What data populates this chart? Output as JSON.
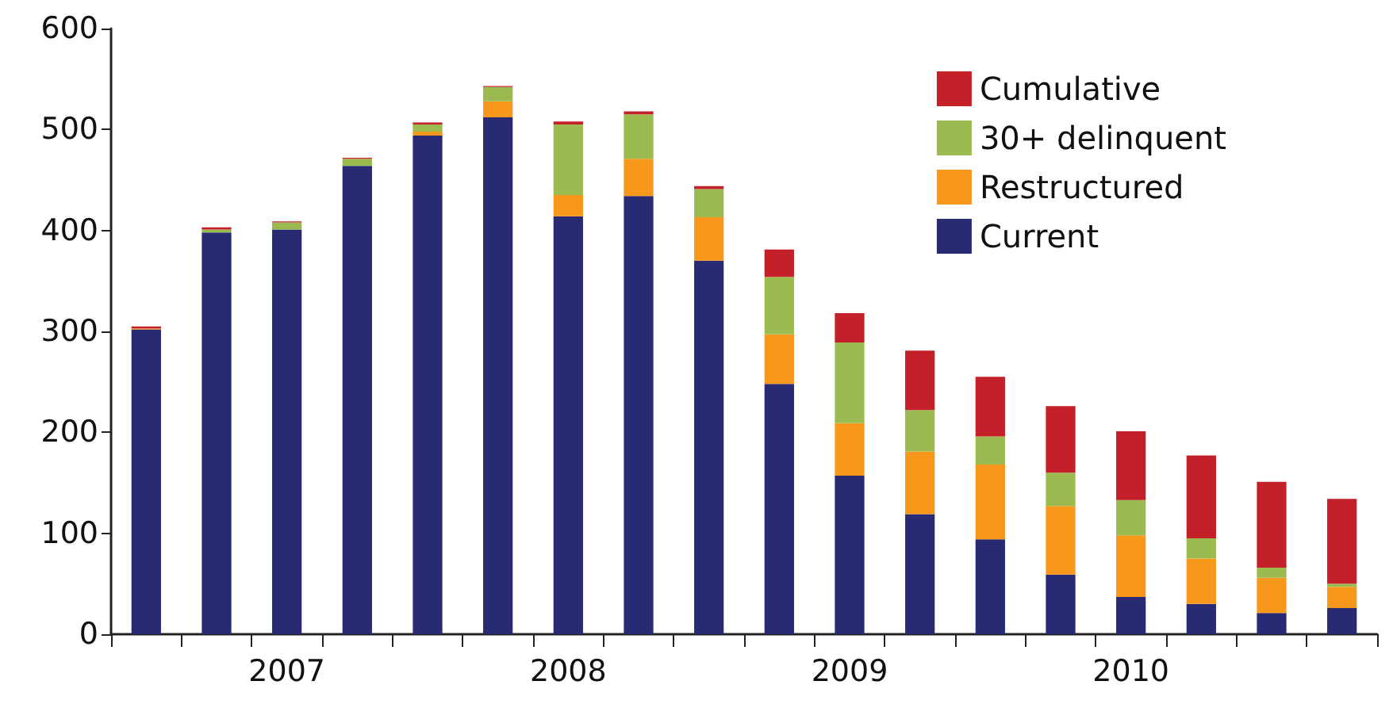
{
  "chart_data": {
    "type": "bar",
    "stacked": true,
    "categories": [
      null,
      null,
      "2007",
      null,
      null,
      null,
      "2008",
      null,
      null,
      null,
      "2009",
      null,
      null,
      null,
      "2010",
      null,
      null,
      null
    ],
    "series": [
      {
        "name": "Current",
        "color": "#282a73",
        "values": [
          302,
          398,
          401,
          464,
          494,
          512,
          414,
          434,
          370,
          248,
          157,
          119,
          94,
          59,
          37,
          30,
          21,
          26
        ]
      },
      {
        "name": "Restructured",
        "color": "#f7981d",
        "values": [
          1,
          0,
          0,
          0,
          4,
          16,
          21,
          37,
          43,
          49,
          52,
          62,
          74,
          68,
          61,
          45,
          35,
          21
        ]
      },
      {
        "name": "30+ delinquent",
        "color": "#9bbb50",
        "values": [
          0,
          3,
          7,
          7,
          7,
          14,
          70,
          44,
          28,
          57,
          80,
          41,
          28,
          33,
          35,
          20,
          10,
          3
        ]
      },
      {
        "name": "Cumulative",
        "color": "#c3202a",
        "values": [
          2,
          2,
          1,
          1,
          2,
          1,
          3,
          3,
          3,
          27,
          29,
          59,
          59,
          66,
          68,
          82,
          85,
          84
        ]
      }
    ],
    "ylim": [
      0,
      600
    ],
    "yticks": [
      0,
      100,
      200,
      300,
      400,
      500,
      600
    ],
    "grid": false,
    "legend": "top right"
  }
}
